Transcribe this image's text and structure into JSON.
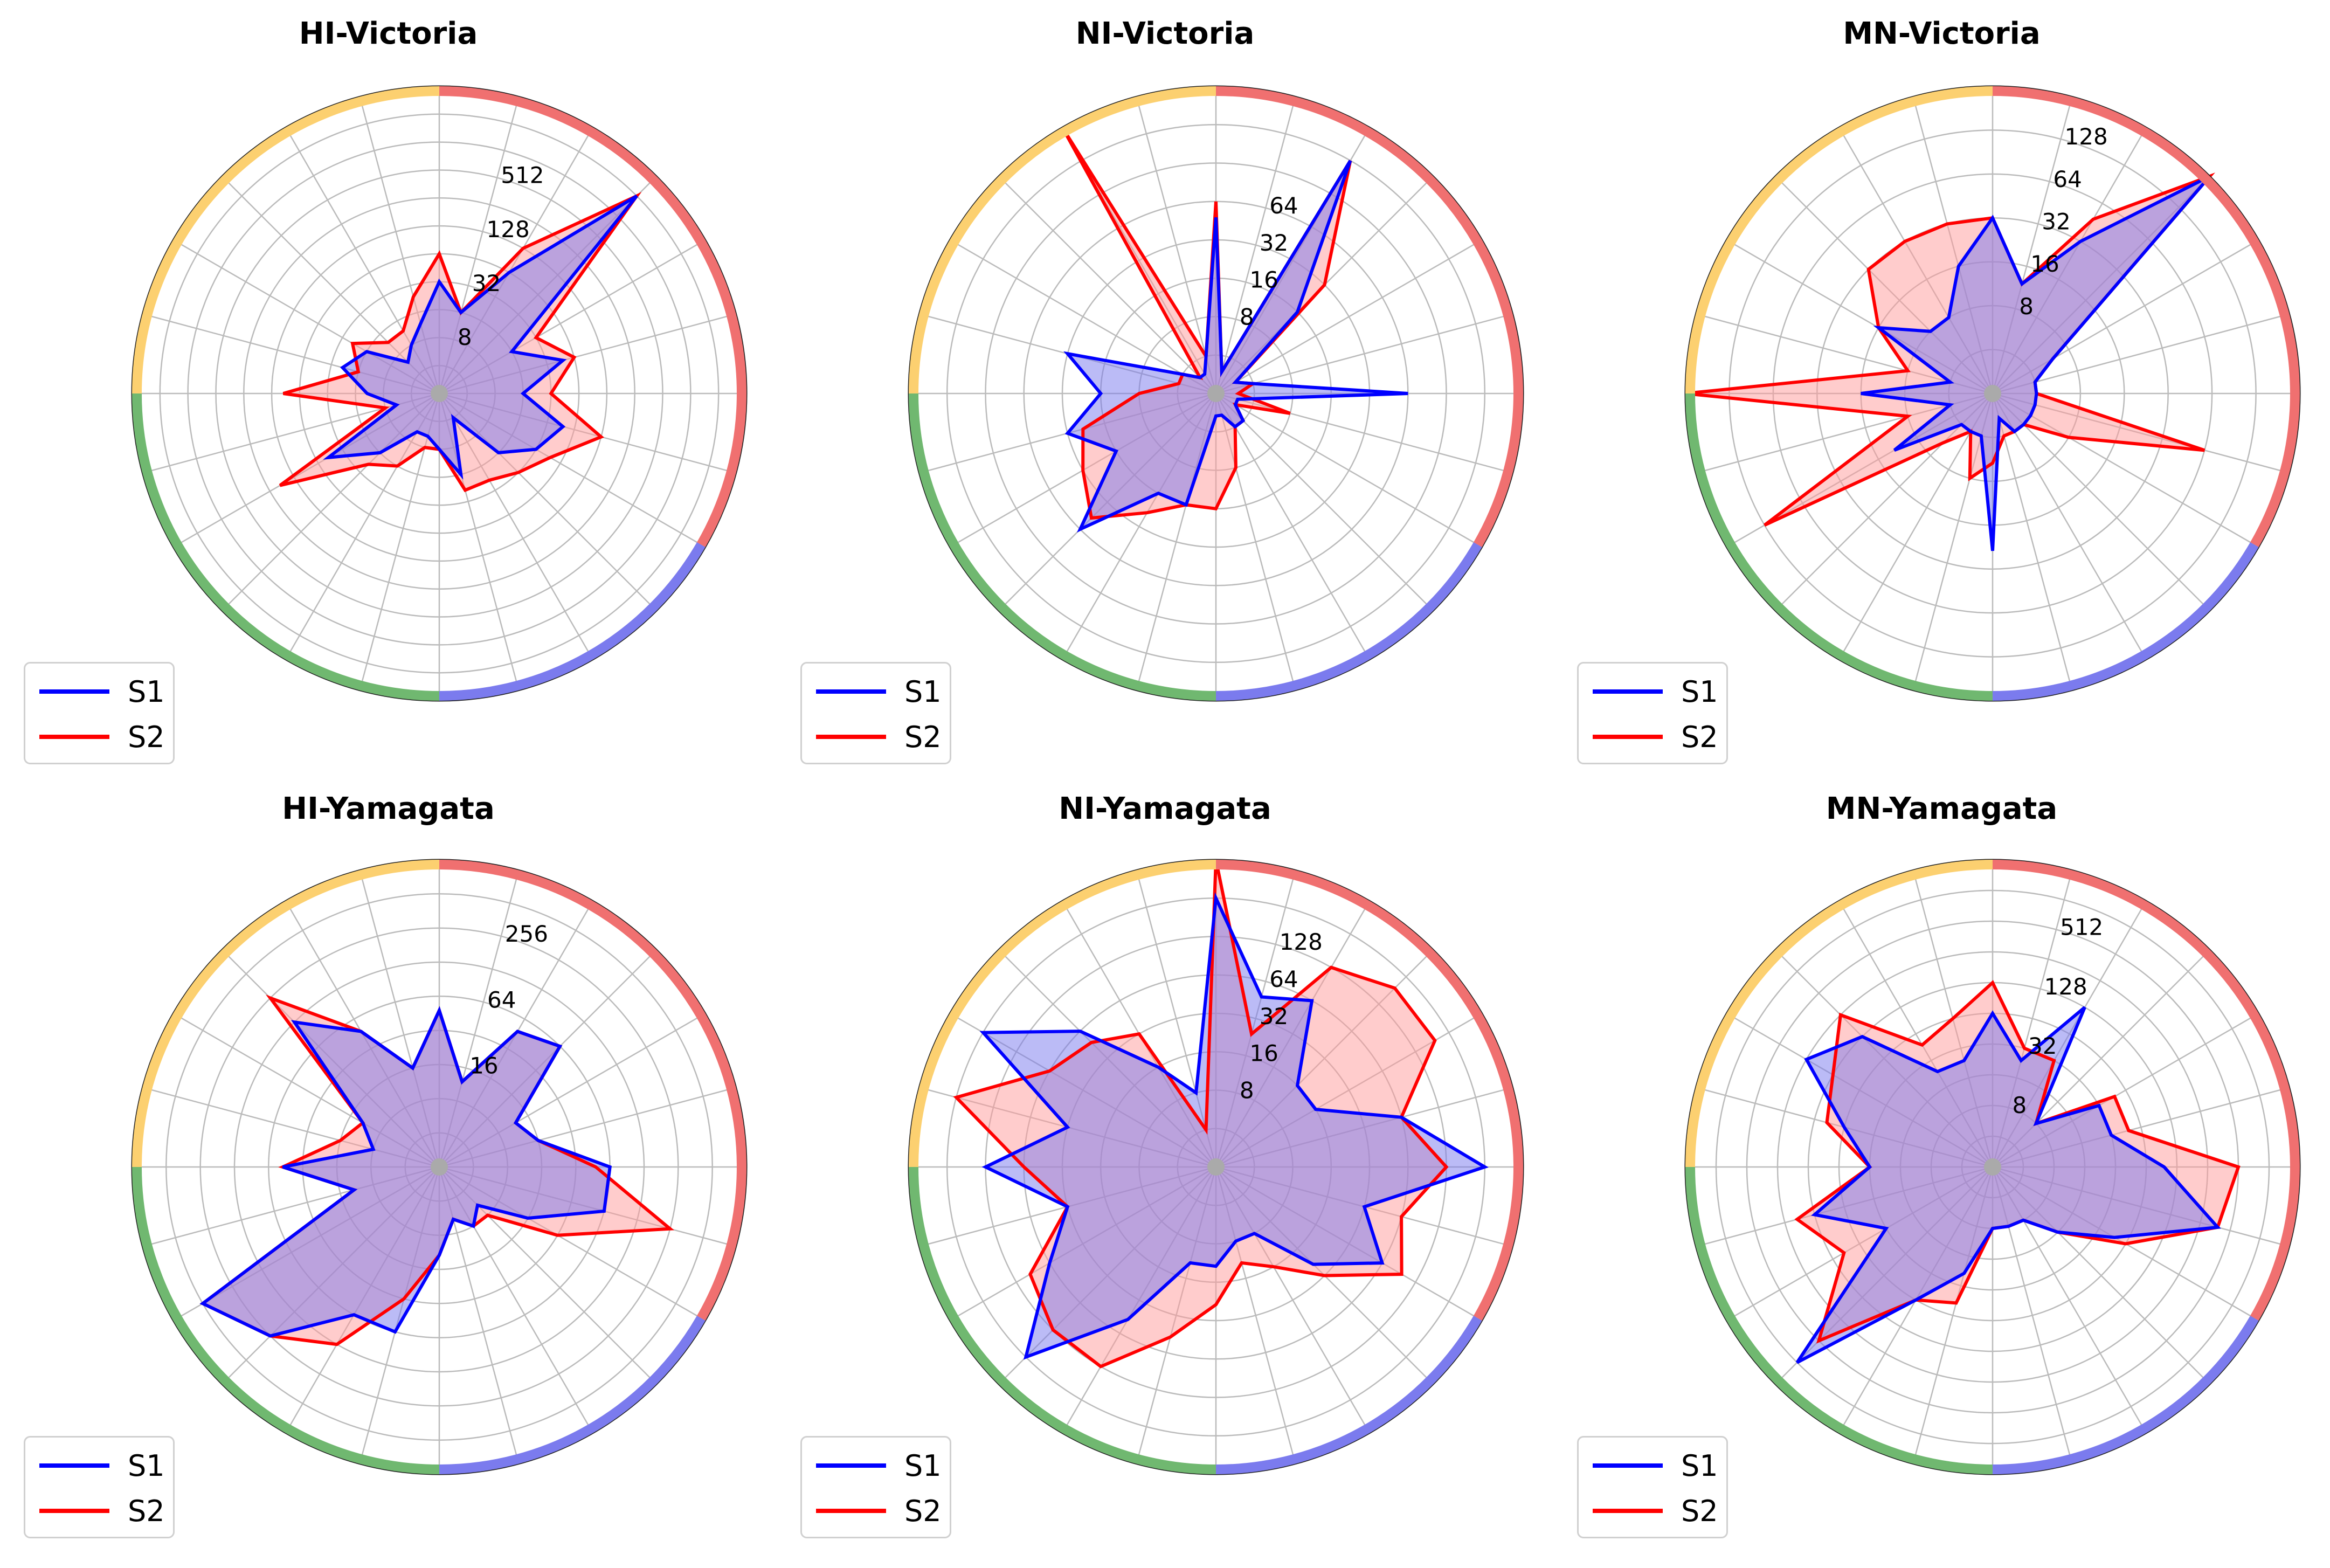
{
  "figure": {
    "colors": {
      "s1_line": "#0000ff",
      "s1_fill": "#7777ee",
      "s2_line": "#ff0000",
      "s2_fill": "#ff9999",
      "ring_red": "#f07070",
      "ring_blue": "#7b7bee",
      "ring_green": "#70b870",
      "ring_yellow": "#fcd070",
      "grid": "#bbbbbb"
    }
  },
  "chart_data": [
    {
      "type": "radar",
      "title": "HI-Victoria",
      "scale": "log2",
      "rmin": 2,
      "rmax": 4096,
      "tick_labels": [
        "8",
        "32",
        "128",
        "512"
      ],
      "tick_values": [
        8,
        32,
        128,
        512
      ],
      "legend": [
        "S1",
        "S2"
      ],
      "legend_placement": "lower-left",
      "series": [
        {
          "name": "S1",
          "values": [
            32,
            16,
            64,
            2048,
            16,
            48,
            16,
            48,
            32,
            16,
            4,
            16,
            8,
            6,
            6,
            16,
            48,
            6,
            12,
            24,
            16,
            6,
            8,
            12
          ]
        },
        {
          "name": "S2",
          "values": [
            64,
            16,
            128,
            2048,
            32,
            64,
            32,
            128,
            48,
            32,
            24,
            24,
            8,
            8,
            16,
            24,
            192,
            8,
            96,
            16,
            24,
            12,
            12,
            24
          ]
        }
      ]
    },
    {
      "type": "radar",
      "title": "NI-Victoria",
      "scale": "log2",
      "rmin": 2,
      "rmax": 512,
      "tick_labels": [
        "8",
        "16",
        "32",
        "64"
      ],
      "tick_values": [
        8,
        16,
        32,
        64
      ],
      "legend": [
        "S1",
        "S2"
      ],
      "legend_placement": "lower-left",
      "series": [
        {
          "name": "S1",
          "values": [
            48,
            3,
            256,
            16,
            3,
            4,
            64,
            3,
            3,
            4,
            4,
            3,
            3,
            16,
            16,
            64,
            16,
            32,
            16,
            32,
            4,
            3,
            3,
            4
          ]
        },
        {
          "name": "S2",
          "values": [
            64,
            3,
            256,
            32,
            3,
            4,
            3,
            8,
            3,
            4,
            4,
            8,
            16,
            16,
            24,
            48,
            32,
            24,
            8,
            4,
            4,
            3,
            512,
            4
          ]
        }
      ]
    },
    {
      "type": "radar",
      "title": "MN-Victoria",
      "scale": "log2",
      "rmin": 2,
      "rmax": 256,
      "tick_labels": [
        "8",
        "16",
        "32",
        "64",
        "128"
      ],
      "tick_values": [
        8,
        16,
        32,
        64,
        128
      ],
      "legend": [
        "S1",
        "S2"
      ],
      "legend_placement": "lower-left",
      "series": [
        {
          "name": "S1",
          "values": [
            32,
            12,
            32,
            256,
            6,
            4,
            4,
            4,
            4,
            4,
            4,
            3,
            24,
            4,
            4,
            4,
            12,
            4,
            16,
            4,
            16,
            8,
            8,
            16
          ]
        },
        {
          "name": "S2",
          "values": [
            32,
            12,
            48,
            256,
            6,
            4,
            4,
            64,
            8,
            4,
            4,
            4,
            6,
            8,
            4,
            6,
            128,
            8,
            256,
            8,
            16,
            32,
            32,
            32
          ]
        }
      ]
    },
    {
      "type": "radar",
      "title": "HI-Yamagata",
      "scale": "log2",
      "rmin": 2,
      "rmax": 1024,
      "tick_labels": [
        "16",
        "64",
        "256"
      ],
      "tick_values": [
        16,
        64,
        256
      ],
      "legend": [
        "S1",
        "S2"
      ],
      "legend_placement": "lower-left",
      "series": [
        {
          "name": "S1",
          "values": [
            48,
            12,
            48,
            64,
            12,
            16,
            64,
            64,
            16,
            6,
            8,
            6,
            12,
            64,
            64,
            256,
            512,
            12,
            48,
            8,
            12,
            128,
            48,
            16
          ]
        },
        {
          "name": "S2",
          "values": [
            48,
            12,
            48,
            64,
            12,
            16,
            48,
            256,
            32,
            8,
            8,
            6,
            12,
            32,
            128,
            256,
            512,
            12,
            48,
            16,
            12,
            256,
            48,
            16
          ]
        }
      ]
    },
    {
      "type": "radar",
      "title": "NI-Yamagata",
      "scale": "log2",
      "rmin": 2,
      "rmax": 512,
      "tick_labels": [
        "8",
        "16",
        "32",
        "64",
        "128"
      ],
      "tick_values": [
        8,
        16,
        32,
        64,
        128
      ],
      "legend": [
        "S1",
        "S2"
      ],
      "legend_placement": "lower-left",
      "series": [
        {
          "name": "S1",
          "values": [
            256,
            48,
            64,
            16,
            16,
            64,
            256,
            32,
            64,
            24,
            8,
            8,
            12,
            12,
            48,
            256,
            64,
            32,
            128,
            32,
            256,
            64,
            16,
            8
          ]
        },
        {
          "name": "S2",
          "values": [
            512,
            24,
            128,
            192,
            192,
            64,
            128,
            64,
            96,
            32,
            16,
            12,
            24,
            48,
            128,
            128,
            96,
            32,
            64,
            256,
            64,
            48,
            32,
            4
          ]
        }
      ]
    },
    {
      "type": "radar",
      "title": "MN-Yamagata",
      "scale": "log2",
      "rmin": 2,
      "rmax": 2048,
      "tick_labels": [
        "8",
        "32",
        "128",
        "512"
      ],
      "tick_values": [
        8,
        32,
        128,
        512
      ],
      "legend": [
        "S1",
        "S2"
      ],
      "legend_placement": "lower-left",
      "series": [
        {
          "name": "S1",
          "values": [
            64,
            24,
            128,
            8,
            32,
            32,
            96,
            384,
            48,
            16,
            8,
            8,
            8,
            24,
            64,
            1024,
            32,
            128,
            32,
            64,
            256,
            128,
            24,
            24
          ]
        },
        {
          "name": "S2",
          "values": [
            128,
            32,
            32,
            8,
            48,
            48,
            512,
            384,
            64,
            16,
            8,
            8,
            8,
            48,
            64,
            512,
            96,
            192,
            32,
            96,
            128,
            256,
            48,
            64
          ]
        }
      ]
    }
  ]
}
